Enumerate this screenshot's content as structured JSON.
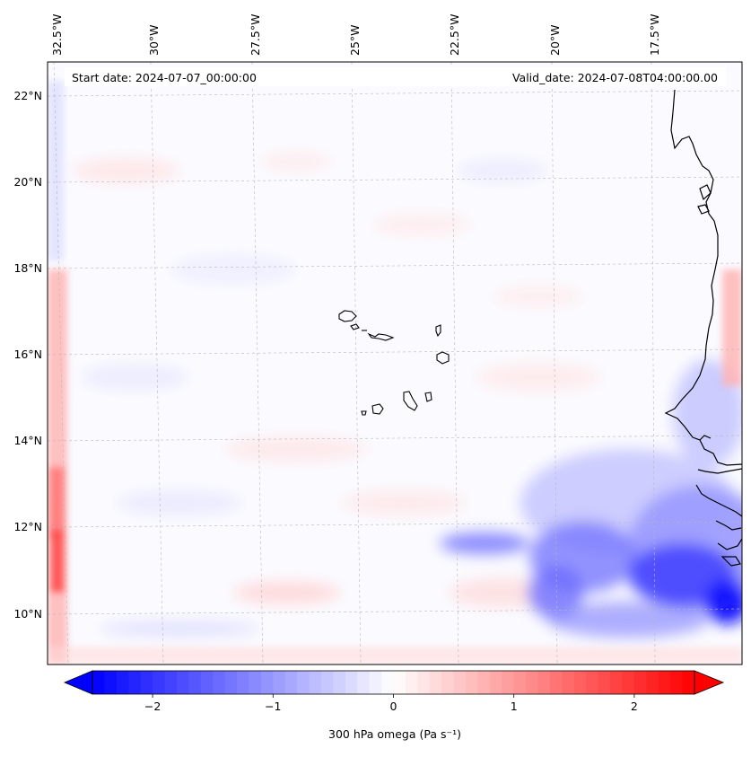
{
  "map": {
    "start_date": "Start date: 2024-07-07_00:00:00",
    "valid_date": "Valid_date: 2024-07-08T04:00:00.00",
    "lon_labels": [
      "32.5°W",
      "30°W",
      "27.5°W",
      "25°W",
      "22.5°W",
      "20°W",
      "17.5°W"
    ],
    "lat_labels": [
      "22°N",
      "20°N",
      "18°N",
      "16°N",
      "14°N",
      "12°N",
      "10°N"
    ],
    "colors": {
      "negative": "#0000ff",
      "neutral": "#ffffff",
      "positive": "#ff0000",
      "coastline": "#000000",
      "gridline": "#b8b8b8"
    }
  },
  "colorbar": {
    "label": "300 hPa omega (Pa s⁻¹)",
    "tick_labels": [
      "−2",
      "−1",
      "0",
      "1",
      "2"
    ],
    "tick_values": [
      -2,
      -1,
      0,
      1,
      2
    ],
    "range": [
      -2.5,
      2.5
    ]
  }
}
